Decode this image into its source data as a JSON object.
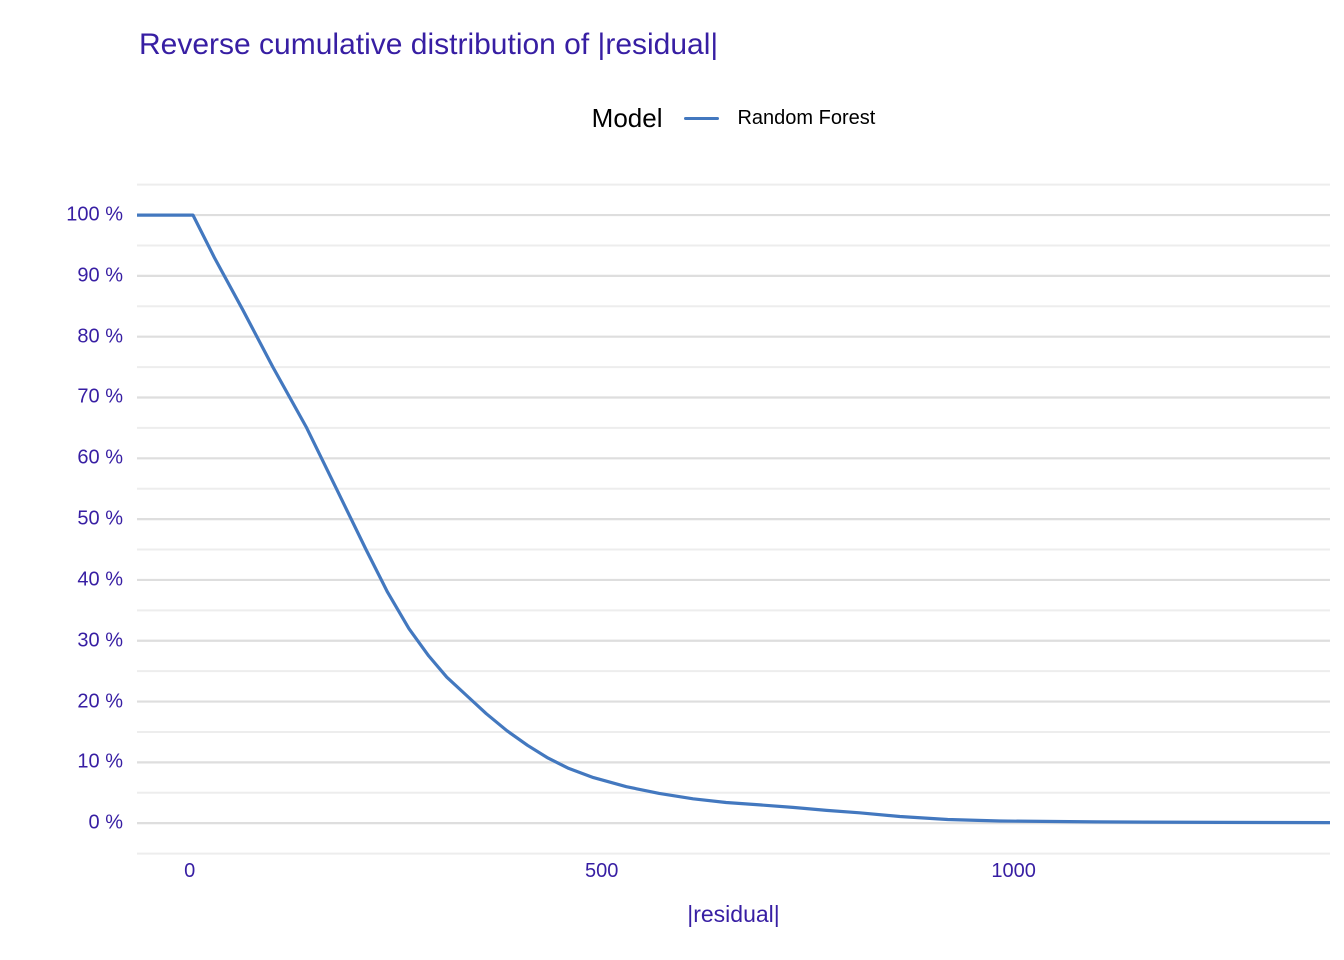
{
  "title": "Reverse cumulative distribution of |residual|",
  "legend": {
    "title": "Model",
    "items": [
      {
        "label": "Random Forest",
        "color": "#4378bf"
      }
    ]
  },
  "colors": {
    "accent_text": "#371ea3",
    "line": "#4378bf",
    "grid_major": "#dedede",
    "grid_minor": "#ededed",
    "legend_text": "#000000",
    "background": "#ffffff"
  },
  "chart_data": {
    "type": "line",
    "title": "Reverse cumulative distribution of |residual|",
    "xlabel": "|residual|",
    "ylabel": "",
    "grid": "horizontal-only",
    "legend_position": "top-center",
    "xlim": [
      -64,
      1384
    ],
    "ylim": [
      -5.4,
      105.6
    ],
    "y_unit": "%",
    "y_minor_grid_step": 5,
    "x_ticks": [
      {
        "value": 0,
        "label": "0"
      },
      {
        "value": 500,
        "label": "500"
      },
      {
        "value": 1000,
        "label": "1000"
      }
    ],
    "y_ticks": [
      {
        "value": 0,
        "label": "0 %"
      },
      {
        "value": 10,
        "label": "10 %"
      },
      {
        "value": 20,
        "label": "20 %"
      },
      {
        "value": 30,
        "label": "30 %"
      },
      {
        "value": 40,
        "label": "40 %"
      },
      {
        "value": 50,
        "label": "50 %"
      },
      {
        "value": 60,
        "label": "60 %"
      },
      {
        "value": 70,
        "label": "70 %"
      },
      {
        "value": 80,
        "label": "80 %"
      },
      {
        "value": 90,
        "label": "90 %"
      },
      {
        "value": 100,
        "label": "100 %"
      }
    ],
    "series": [
      {
        "name": "Random Forest",
        "color": "#4378bf",
        "extend_to_panel_edges": true,
        "points": [
          [
            4,
            100
          ],
          [
            30,
            93
          ],
          [
            64,
            84.5
          ],
          [
            101,
            75
          ],
          [
            142,
            65
          ],
          [
            178,
            55
          ],
          [
            214,
            45
          ],
          [
            240,
            38
          ],
          [
            266,
            32
          ],
          [
            290,
            27.5
          ],
          [
            312,
            24
          ],
          [
            336,
            21
          ],
          [
            360,
            18
          ],
          [
            385,
            15.2
          ],
          [
            410,
            12.8
          ],
          [
            435,
            10.7
          ],
          [
            460,
            9
          ],
          [
            490,
            7.5
          ],
          [
            530,
            6
          ],
          [
            570,
            4.9
          ],
          [
            611,
            4
          ],
          [
            651,
            3.4
          ],
          [
            692,
            3.0
          ],
          [
            732,
            2.6
          ],
          [
            773,
            2.1
          ],
          [
            813,
            1.7
          ],
          [
            862,
            1.1
          ],
          [
            920,
            0.6
          ],
          [
            983,
            0.35
          ],
          [
            1100,
            0.2
          ],
          [
            1250,
            0.12
          ],
          [
            1384,
            0.1
          ]
        ]
      }
    ]
  }
}
